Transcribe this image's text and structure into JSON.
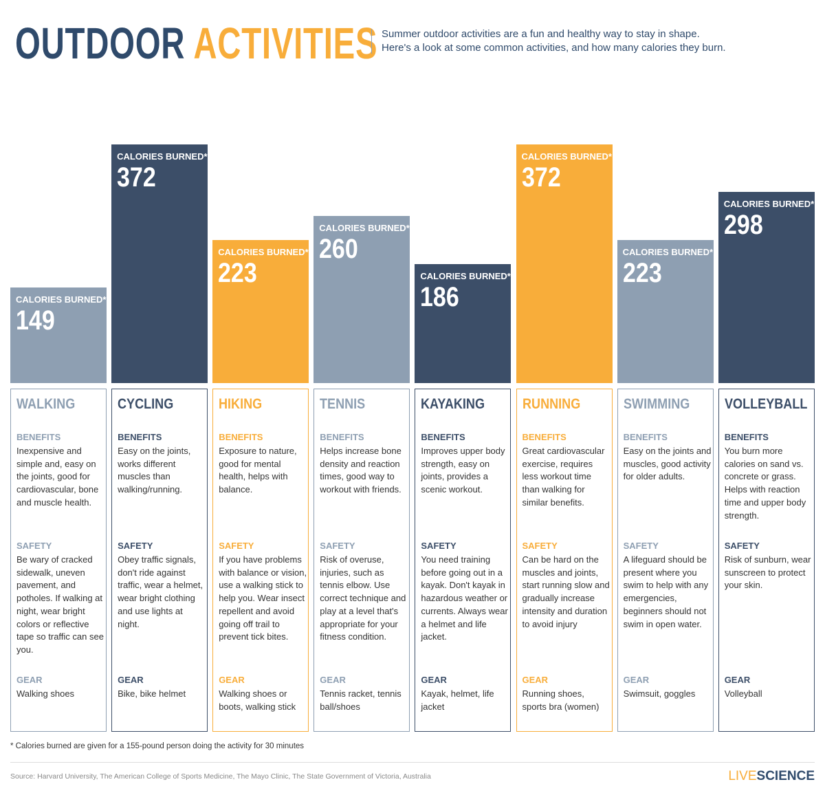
{
  "header": {
    "title_parts": [
      "OUTDOOR",
      "ACTIVITIES"
    ],
    "subtitle_lines": [
      "Summer outdoor activities are a fun and healthy way to stay in shape.",
      "Here's a look at some common activities, and how many calories they burn."
    ]
  },
  "chart_data": {
    "type": "bar",
    "bar_label": "CALORIES BURNED*",
    "categories": [
      "WALKING",
      "CYCLING",
      "HIKING",
      "TENNIS",
      "KAYAKING",
      "RUNNING",
      "SWIMMING",
      "VOLLEYBALL"
    ],
    "values": [
      149,
      372,
      223,
      260,
      186,
      372,
      223,
      298
    ],
    "colors": [
      "#8e9fb2",
      "#3c4e68",
      "#f8ad3a",
      "#8e9fb2",
      "#3c4e68",
      "#f8ad3a",
      "#8e9fb2",
      "#3c4e68"
    ]
  },
  "cards": {
    "headings": [
      "BENEFITS",
      "SAFETY",
      "GEAR"
    ],
    "activities": [
      {
        "benefits": "Inexpensive and simple and, easy on the joints, good for cardiovascular, bone and muscle health.",
        "safety": "Be wary of cracked sidewalk, uneven pavement, and potholes. If walking at night, wear bright colors or reflective tape so traffic can see you.",
        "gear": "Walking shoes"
      },
      {
        "benefits": "Easy on the joints, works different muscles than walking/running.",
        "safety": "Obey traffic signals, don't ride against traffic, wear a helmet, wear bright clothing and use lights at night.",
        "gear": "Bike, bike helmet"
      },
      {
        "benefits": "Exposure to nature, good for mental health, helps with balance.",
        "safety": "If you have problems with balance or vision, use a walking stick to help you. Wear insect repellent and avoid going off trail to prevent tick bites.",
        "gear": "Walking shoes or boots, walking stick"
      },
      {
        "benefits": "Helps increase bone density and reaction times, good way to workout with friends.",
        "safety": "Risk of overuse, injuries, such as tennis elbow. Use correct technique and play at a level that's appropriate for your fitness condition.",
        "gear": "Tennis racket, tennis ball/shoes"
      },
      {
        "benefits": "Improves upper body strength, easy on joints, provides a scenic workout.",
        "safety": "You need training before going out in a kayak. Don't kayak in hazardous weather or currents. Always wear a helmet and life jacket.",
        "gear": "Kayak, helmet, life jacket"
      },
      {
        "benefits": "Great cardiovascular exercise, requires less workout time than walking for similar benefits.",
        "safety": "Can be hard on the muscles and joints, start running slow and gradually increase intensity and duration to avoid injury",
        "gear": "Running shoes, sports bra (women)"
      },
      {
        "benefits": "Easy on the joints and muscles, good activity for older adults.",
        "safety": "A lifeguard should be present where you swim to help with any emergencies, beginners should not swim in open water.",
        "gear": "Swimsuit, goggles"
      },
      {
        "benefits": "You burn more calories on sand vs. concrete or grass. Helps with reaction time and upper body strength.",
        "safety": "Risk of sunburn, wear sunscreen to protect your skin.",
        "gear": "Volleyball"
      }
    ]
  },
  "footer": {
    "footnote": "* Calories burned are given for a 155-pound person doing the activity for 30 minutes",
    "source": "Source: Harvard University, The American College of Sports Medicine, The Mayo Clinic, The State Government of Victoria, Australia",
    "logo_parts": [
      "LIVE",
      "SCIENCE"
    ]
  }
}
